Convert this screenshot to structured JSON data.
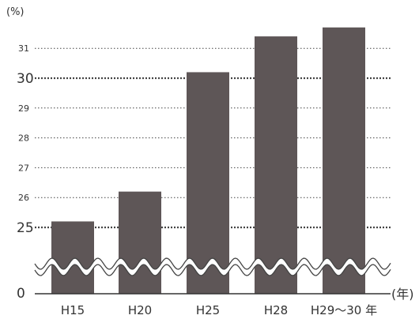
{
  "chart_data": {
    "type": "bar",
    "y_unit_label": "(%)",
    "x_unit_label": "(年)",
    "categories": [
      "H15",
      "H20",
      "H25",
      "H28",
      "H29～30 年"
    ],
    "values": [
      25.2,
      26.2,
      30.2,
      31.4,
      31.7
    ],
    "ylim": [
      25,
      31.5
    ],
    "axis_break": true,
    "zero_label": "0",
    "y_ticks": [
      {
        "label": "25",
        "value": 25,
        "major": true
      },
      {
        "label": "26",
        "value": 26,
        "major": false
      },
      {
        "label": "27",
        "value": 27,
        "major": false
      },
      {
        "label": "28",
        "value": 28,
        "major": false
      },
      {
        "label": "29",
        "value": 29,
        "major": false
      },
      {
        "label": "30",
        "value": 30,
        "major": true
      },
      {
        "label": "31",
        "value": 31,
        "major": false
      }
    ],
    "grid": true,
    "bar_color": "#5e5657",
    "grid_color": "#444444"
  }
}
